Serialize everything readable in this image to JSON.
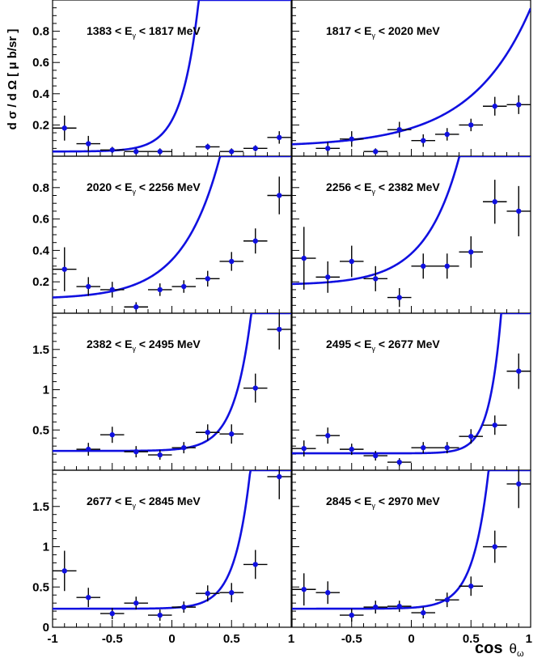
{
  "figure": {
    "ylabel": "d σ / d Ω  [ μ b/sr ]",
    "xlabel_main": "cos",
    "xlabel_sym": "θ",
    "xlabel_sub": "ω"
  },
  "chart_data": [
    {
      "type": "scatter",
      "label_lo": "1383 < E",
      "label_sub": "γ",
      "label_hi": " < 1817 MeV",
      "xlim": [
        -1,
        1
      ],
      "ylim": [
        0,
        1.0
      ],
      "yticks": [
        {
          "v": 0.2,
          "t": "0.2"
        },
        {
          "v": 0.4,
          "t": "0.4"
        },
        {
          "v": 0.6,
          "t": "0.6"
        },
        {
          "v": 0.8,
          "t": "0.8"
        }
      ],
      "xticks": [],
      "points": [
        {
          "x": -0.9,
          "y": 0.18,
          "ey": 0.08
        },
        {
          "x": -0.7,
          "y": 0.08,
          "ey": 0.05
        },
        {
          "x": -0.5,
          "y": 0.04,
          "ey": 0.02
        },
        {
          "x": -0.3,
          "y": 0.03,
          "ey": 0.02
        },
        {
          "x": -0.1,
          "y": 0.03,
          "ey": 0.02
        },
        {
          "x": 0.3,
          "y": 0.06,
          "ey": 0.02
        },
        {
          "x": 0.5,
          "y": 0.03,
          "ey": 0.02
        },
        {
          "x": 0.7,
          "y": 0.05,
          "ey": 0.02
        },
        {
          "x": 0.9,
          "y": 0.12,
          "ey": 0.04
        }
      ],
      "fit": {
        "a": 0.03,
        "b": 0.2,
        "k": 7.0
      }
    },
    {
      "type": "scatter",
      "label_lo": "1817 < E",
      "label_sub": "γ",
      "label_hi": " < 2020 MeV",
      "xlim": [
        -1,
        1
      ],
      "ylim": [
        0,
        1.0
      ],
      "yticks": [],
      "xticks": [],
      "points": [
        {
          "x": -0.7,
          "y": 0.05,
          "ey": 0.04
        },
        {
          "x": -0.5,
          "y": 0.11,
          "ey": 0.05
        },
        {
          "x": -0.3,
          "y": 0.03,
          "ey": 0.02
        },
        {
          "x": -0.1,
          "y": 0.17,
          "ey": 0.05
        },
        {
          "x": 0.1,
          "y": 0.1,
          "ey": 0.04
        },
        {
          "x": 0.3,
          "y": 0.14,
          "ey": 0.04
        },
        {
          "x": 0.5,
          "y": 0.2,
          "ey": 0.04
        },
        {
          "x": 0.7,
          "y": 0.32,
          "ey": 0.06
        },
        {
          "x": 0.9,
          "y": 0.33,
          "ey": 0.06
        }
      ],
      "fit": {
        "a": 0.06,
        "b": 0.12,
        "k": 2.0
      }
    },
    {
      "type": "scatter",
      "label_lo": "2020 < E",
      "label_sub": "γ",
      "label_hi": " < 2256 MeV",
      "xlim": [
        -1,
        1
      ],
      "ylim": [
        0,
        1.0
      ],
      "yticks": [
        {
          "v": 0.2,
          "t": "0.2"
        },
        {
          "v": 0.4,
          "t": "0.4"
        },
        {
          "v": 0.6,
          "t": "0.6"
        },
        {
          "v": 0.8,
          "t": "0.8"
        }
      ],
      "xticks": [],
      "points": [
        {
          "x": -0.9,
          "y": 0.28,
          "ey": 0.14
        },
        {
          "x": -0.7,
          "y": 0.17,
          "ey": 0.06
        },
        {
          "x": -0.5,
          "y": 0.15,
          "ey": 0.05
        },
        {
          "x": -0.3,
          "y": 0.04,
          "ey": 0.03
        },
        {
          "x": -0.1,
          "y": 0.15,
          "ey": 0.04
        },
        {
          "x": 0.1,
          "y": 0.17,
          "ey": 0.04
        },
        {
          "x": 0.3,
          "y": 0.22,
          "ey": 0.05
        },
        {
          "x": 0.5,
          "y": 0.33,
          "ey": 0.06
        },
        {
          "x": 0.7,
          "y": 0.46,
          "ey": 0.08
        },
        {
          "x": 0.9,
          "y": 0.75,
          "ey": 0.12
        }
      ],
      "fit": {
        "a": 0.09,
        "b": 0.25,
        "k": 3.2
      }
    },
    {
      "type": "scatter",
      "label_lo": "2256 < E",
      "label_sub": "γ",
      "label_hi": " < 2382 MeV",
      "xlim": [
        -1,
        1
      ],
      "ylim": [
        0,
        1.0
      ],
      "yticks": [],
      "xticks": [],
      "points": [
        {
          "x": -0.9,
          "y": 0.35,
          "ey": 0.2
        },
        {
          "x": -0.7,
          "y": 0.23,
          "ey": 0.1
        },
        {
          "x": -0.5,
          "y": 0.33,
          "ey": 0.1
        },
        {
          "x": -0.3,
          "y": 0.22,
          "ey": 0.08
        },
        {
          "x": -0.1,
          "y": 0.1,
          "ey": 0.06
        },
        {
          "x": 0.1,
          "y": 0.3,
          "ey": 0.08
        },
        {
          "x": 0.3,
          "y": 0.3,
          "ey": 0.08
        },
        {
          "x": 0.5,
          "y": 0.39,
          "ey": 0.1
        },
        {
          "x": 0.7,
          "y": 0.71,
          "ey": 0.14
        },
        {
          "x": 0.9,
          "y": 0.65,
          "ey": 0.16
        }
      ],
      "fit": {
        "a": 0.18,
        "b": 0.2,
        "k": 3.5
      }
    },
    {
      "type": "scatter",
      "label_lo": "2382 < E",
      "label_sub": "γ",
      "label_hi": " < 2495 MeV",
      "xlim": [
        -1,
        1
      ],
      "ylim": [
        0,
        1.95
      ],
      "yticks": [
        {
          "v": 0.5,
          "t": "0.5"
        },
        {
          "v": 1,
          "t": "1"
        },
        {
          "v": 1.5,
          "t": "1.5"
        }
      ],
      "xticks": [],
      "points": [
        {
          "x": -0.7,
          "y": 0.26,
          "ey": 0.08
        },
        {
          "x": -0.5,
          "y": 0.44,
          "ey": 0.1
        },
        {
          "x": -0.3,
          "y": 0.23,
          "ey": 0.07
        },
        {
          "x": -0.1,
          "y": 0.19,
          "ey": 0.06
        },
        {
          "x": 0.1,
          "y": 0.28,
          "ey": 0.07
        },
        {
          "x": 0.3,
          "y": 0.47,
          "ey": 0.1
        },
        {
          "x": 0.5,
          "y": 0.45,
          "ey": 0.12
        },
        {
          "x": 0.7,
          "y": 1.02,
          "ey": 0.18
        },
        {
          "x": 0.9,
          "y": 1.75,
          "ey": 0.25
        }
      ],
      "fit": {
        "a": 0.24,
        "b": 0.0162,
        "k": 7.0
      }
    },
    {
      "type": "scatter",
      "label_lo": "2495 < E",
      "label_sub": "γ",
      "label_hi": " < 2677 MeV",
      "xlim": [
        -1,
        1
      ],
      "ylim": [
        0,
        1.95
      ],
      "yticks": [],
      "xticks": [],
      "points": [
        {
          "x": -0.9,
          "y": 0.27,
          "ey": 0.1
        },
        {
          "x": -0.7,
          "y": 0.43,
          "ey": 0.1
        },
        {
          "x": -0.5,
          "y": 0.26,
          "ey": 0.07
        },
        {
          "x": -0.3,
          "y": 0.18,
          "ey": 0.06
        },
        {
          "x": -0.1,
          "y": 0.1,
          "ey": 0.05
        },
        {
          "x": 0.1,
          "y": 0.28,
          "ey": 0.07
        },
        {
          "x": 0.3,
          "y": 0.28,
          "ey": 0.07
        },
        {
          "x": 0.5,
          "y": 0.42,
          "ey": 0.09
        },
        {
          "x": 0.7,
          "y": 0.56,
          "ey": 0.12
        },
        {
          "x": 0.9,
          "y": 1.23,
          "ey": 0.22
        }
      ],
      "fit": {
        "a": 0.21,
        "b": 0.00093,
        "k": 10.0
      }
    },
    {
      "type": "scatter",
      "label_lo": "2677 < E",
      "label_sub": "γ",
      "label_hi": " < 2845 MeV",
      "xlim": [
        -1,
        1
      ],
      "ylim": [
        0,
        1.95
      ],
      "yticks": [
        {
          "v": 0,
          "t": "0"
        },
        {
          "v": 0.5,
          "t": "0.5"
        },
        {
          "v": 1,
          "t": "1"
        },
        {
          "v": 1.5,
          "t": "1.5"
        }
      ],
      "xticks": [
        {
          "v": -1,
          "t": "-1"
        },
        {
          "v": -0.5,
          "t": "-0.5"
        },
        {
          "v": 0,
          "t": "0"
        },
        {
          "v": 0.5,
          "t": "0.5"
        },
        {
          "v": 1,
          "t": "1"
        }
      ],
      "points": [
        {
          "x": -0.9,
          "y": 0.7,
          "ey": 0.25
        },
        {
          "x": -0.7,
          "y": 0.37,
          "ey": 0.12
        },
        {
          "x": -0.5,
          "y": 0.17,
          "ey": 0.07
        },
        {
          "x": -0.3,
          "y": 0.3,
          "ey": 0.08
        },
        {
          "x": -0.1,
          "y": 0.15,
          "ey": 0.07
        },
        {
          "x": 0.1,
          "y": 0.25,
          "ey": 0.07
        },
        {
          "x": 0.3,
          "y": 0.42,
          "ey": 0.1
        },
        {
          "x": 0.5,
          "y": 0.43,
          "ey": 0.12
        },
        {
          "x": 0.7,
          "y": 0.78,
          "ey": 0.18
        },
        {
          "x": 0.9,
          "y": 1.87,
          "ey": 0.28
        }
      ],
      "fit": {
        "a": 0.23,
        "b": 0.0109,
        "k": 7.7
      }
    },
    {
      "type": "scatter",
      "label_lo": "2845 < E",
      "label_sub": "γ",
      "label_hi": " < 2970 MeV",
      "xlim": [
        -1,
        1
      ],
      "ylim": [
        0,
        1.95
      ],
      "yticks": [],
      "xticks": [
        {
          "v": -0.5,
          "t": "-0.5"
        },
        {
          "v": 0,
          "t": "0"
        },
        {
          "v": 0.5,
          "t": "0.5"
        },
        {
          "v": 1,
          "t": "1"
        }
      ],
      "points": [
        {
          "x": -0.9,
          "y": 0.47,
          "ey": 0.2
        },
        {
          "x": -0.7,
          "y": 0.43,
          "ey": 0.14
        },
        {
          "x": -0.5,
          "y": 0.15,
          "ey": 0.08
        },
        {
          "x": -0.3,
          "y": 0.25,
          "ey": 0.08
        },
        {
          "x": -0.1,
          "y": 0.26,
          "ey": 0.07
        },
        {
          "x": 0.1,
          "y": 0.18,
          "ey": 0.07
        },
        {
          "x": 0.3,
          "y": 0.34,
          "ey": 0.09
        },
        {
          "x": 0.5,
          "y": 0.51,
          "ey": 0.12
        },
        {
          "x": 0.7,
          "y": 1.0,
          "ey": 0.2
        },
        {
          "x": 0.9,
          "y": 1.78,
          "ey": 0.3
        }
      ],
      "fit": {
        "a": 0.23,
        "b": 0.0125,
        "k": 7.6
      }
    }
  ]
}
